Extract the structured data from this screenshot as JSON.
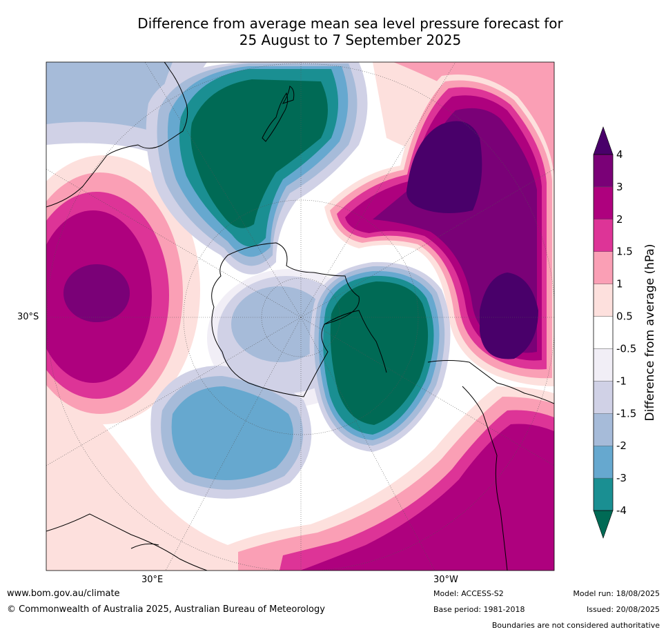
{
  "title_line1": "Difference from average mean sea level pressure forecast for",
  "title_line2": "25 August to 7 September 2025",
  "axis_labels": {
    "left_lat": "30°S",
    "bottom_left_lon": "30°E",
    "bottom_right_lon": "30°W"
  },
  "colorbar": {
    "label": "Difference from average (hPa)",
    "ticks": [
      "-4",
      "-3",
      "-2",
      "-1.5",
      "-1",
      "-0.5",
      "0.5",
      "1",
      "1.5",
      "2",
      "3",
      "4"
    ],
    "colors": {
      "below_min": "#006a55",
      "bins": [
        "#1a8f92",
        "#66a8cf",
        "#a6bbd9",
        "#d0d1e6",
        "#f1eef6",
        "#ffffff",
        "#fde0dd",
        "#fa9fb5",
        "#dd3497",
        "#ae017e",
        "#7a0177"
      ],
      "above_max": "#49006a"
    }
  },
  "footer": {
    "website": "www.bom.gov.au/climate",
    "copyright": "© Commonwealth of Australia 2025, Australian Bureau of Meteorology",
    "model": "Model: ACCESS-S2",
    "base_period": "Base period: 1981-2018",
    "model_run": "Model run: 18/08/2025",
    "issued": "Issued: 20/08/2025",
    "disclaimer": "Boundaries are not considered authoritative"
  }
}
